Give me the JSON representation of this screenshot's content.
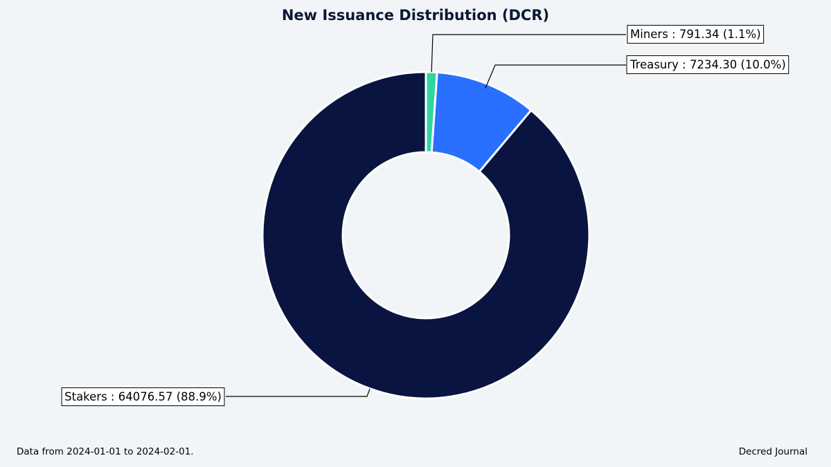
{
  "chart_data": {
    "type": "pie",
    "donut": true,
    "title": "New Issuance Distribution (DCR)",
    "slices": [
      {
        "label": "Miners",
        "value": 791.34,
        "percent": 1.1,
        "color": "#2ed6a1",
        "display": "Miners : 791.34 (1.1%)"
      },
      {
        "label": "Treasury",
        "value": 7234.3,
        "percent": 10.0,
        "color": "#2970ff",
        "display": "Treasury : 7234.30 (10.0%)"
      },
      {
        "label": "Stakers",
        "value": 64076.57,
        "percent": 88.9,
        "color": "#091440",
        "display": "Stakers : 64076.57 (88.9%)"
      }
    ]
  },
  "footer": {
    "source": "Data from 2024-01-01 to 2024-02-01.",
    "credit": "Decred Journal"
  }
}
